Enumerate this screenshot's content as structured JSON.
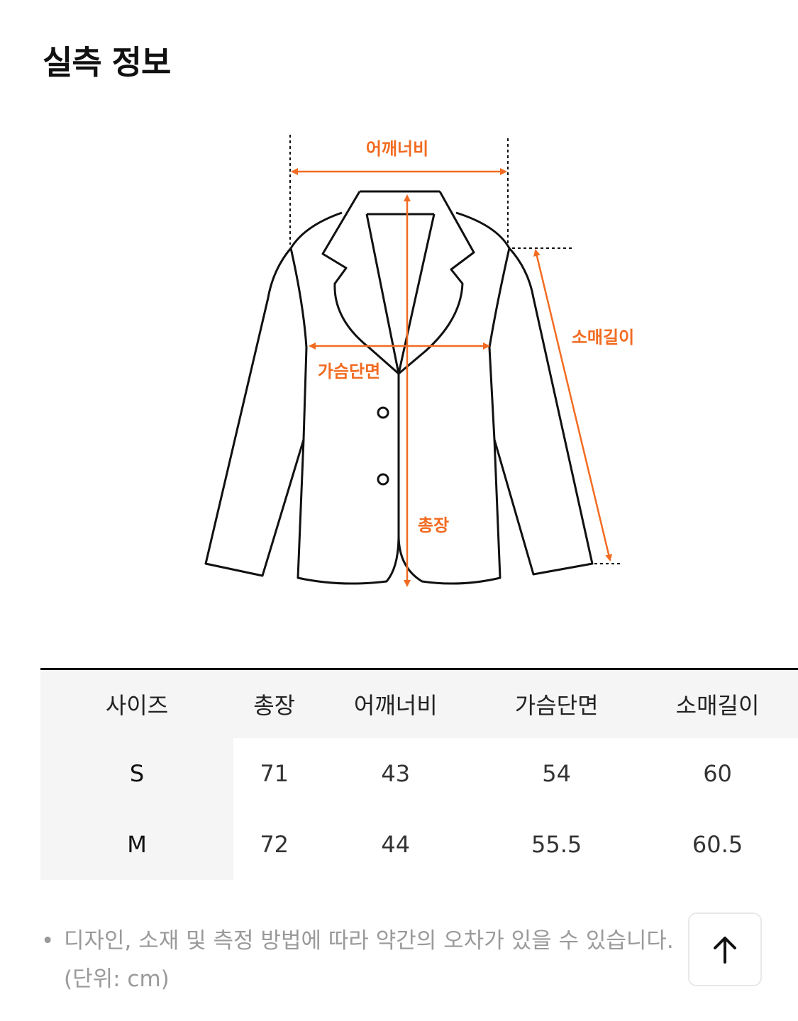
{
  "page": {
    "title": "실측 정보"
  },
  "diagram": {
    "accent_color": "#f26b21",
    "labels": {
      "shoulder": "어깨너비",
      "sleeve": "소매길이",
      "chest": "가슴단면",
      "length": "총장"
    }
  },
  "table": {
    "headers": [
      "사이즈",
      "총장",
      "어깨너비",
      "가슴단면",
      "소매길이"
    ],
    "rows": [
      [
        "S",
        "71",
        "43",
        "54",
        "60"
      ],
      [
        "M",
        "72",
        "44",
        "55.5",
        "60.5"
      ]
    ]
  },
  "notes": {
    "bullet": "•",
    "line1": "디자인, 소재 및 측정 방법에 따라 약간의 오차가 있을 수 있습니다.",
    "line2": "(단위: cm)"
  },
  "scroll_top_button": {
    "icon": "arrow-up-icon"
  }
}
